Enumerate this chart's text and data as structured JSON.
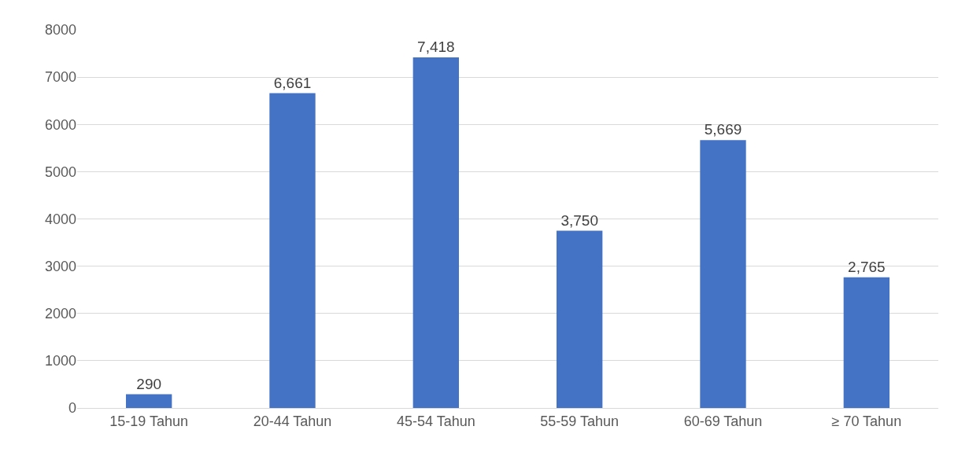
{
  "chart_data": {
    "type": "bar",
    "categories": [
      "15-19 Tahun",
      "20-44 Tahun",
      "45-54 Tahun",
      "55-59 Tahun",
      "60-69 Tahun",
      "≥ 70 Tahun"
    ],
    "values": [
      290,
      6661,
      7418,
      3750,
      5669,
      2765
    ],
    "value_labels": [
      "290",
      "6,661",
      "7,418",
      "3,750",
      "5,669",
      "2,765"
    ],
    "color": "#4472c4",
    "ylim": [
      0,
      8000
    ],
    "yticks": [
      0,
      1000,
      2000,
      3000,
      4000,
      5000,
      6000,
      7000,
      8000
    ],
    "grid": "y"
  }
}
